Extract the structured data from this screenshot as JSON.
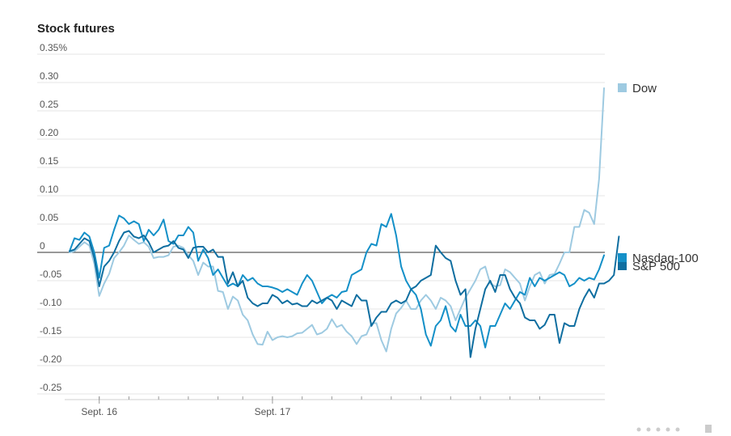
{
  "chart_data": {
    "type": "line",
    "title": "Stock futures",
    "xlabel": "",
    "ylabel": "",
    "ylim": [
      -0.25,
      0.35
    ],
    "y_ticks": [
      {
        "value": 0.35,
        "label": "0.35%"
      },
      {
        "value": 0.3,
        "label": "0.30"
      },
      {
        "value": 0.25,
        "label": "0.25"
      },
      {
        "value": 0.2,
        "label": "0.20"
      },
      {
        "value": 0.15,
        "label": "0.15"
      },
      {
        "value": 0.1,
        "label": "0.10"
      },
      {
        "value": 0.05,
        "label": "0.05"
      },
      {
        "value": 0,
        "label": "0"
      },
      {
        "value": -0.05,
        "label": "-0.05"
      },
      {
        "value": -0.1,
        "label": "-0.10"
      },
      {
        "value": -0.15,
        "label": "-0.15"
      },
      {
        "value": -0.2,
        "label": "-0.20"
      },
      {
        "value": -0.25,
        "label": "-0.25"
      }
    ],
    "x_labels": [
      {
        "index": 6,
        "label": "Sept. 16"
      },
      {
        "index": 41,
        "label": "Sept. 17"
      }
    ],
    "x_minor_ticks": [
      6,
      12,
      18,
      24,
      30,
      35,
      41,
      47,
      53,
      59,
      65,
      71,
      77,
      83,
      89,
      95
    ],
    "grid": true,
    "legend_position": "right-inline",
    "series": [
      {
        "name": "Dow",
        "color": "#9ecae1",
        "values": [
          0.0,
          0.002,
          0.01,
          0.018,
          0.012,
          -0.02,
          -0.077,
          -0.055,
          -0.038,
          -0.01,
          0.0,
          0.012,
          0.03,
          0.022,
          0.015,
          0.018,
          0.01,
          -0.01,
          -0.008,
          -0.008,
          -0.005,
          0.01,
          0.012,
          0.008,
          -0.005,
          -0.015,
          -0.04,
          -0.018,
          -0.025,
          -0.025,
          -0.068,
          -0.07,
          -0.1,
          -0.078,
          -0.085,
          -0.11,
          -0.12,
          -0.145,
          -0.162,
          -0.163,
          -0.14,
          -0.155,
          -0.15,
          -0.148,
          -0.15,
          -0.148,
          -0.143,
          -0.142,
          -0.135,
          -0.128,
          -0.145,
          -0.142,
          -0.135,
          -0.118,
          -0.132,
          -0.128,
          -0.14,
          -0.148,
          -0.162,
          -0.148,
          -0.145,
          -0.125,
          -0.125,
          -0.155,
          -0.175,
          -0.135,
          -0.108,
          -0.098,
          -0.085,
          -0.1,
          -0.1,
          -0.085,
          -0.075,
          -0.085,
          -0.1,
          -0.08,
          -0.085,
          -0.095,
          -0.12,
          -0.1,
          -0.08,
          -0.065,
          -0.05,
          -0.03,
          -0.025,
          -0.055,
          -0.06,
          -0.058,
          -0.03,
          -0.035,
          -0.045,
          -0.055,
          -0.085,
          -0.06,
          -0.04,
          -0.035,
          -0.055,
          -0.04,
          -0.038,
          -0.02,
          0.0,
          0.0,
          0.045,
          0.045,
          0.075,
          0.07,
          0.05,
          0.13,
          0.29
        ]
      },
      {
        "name": "S&P 500",
        "color": "#0f6ea0",
        "values": [
          0.002,
          0.005,
          0.015,
          0.025,
          0.02,
          -0.01,
          -0.06,
          -0.025,
          -0.015,
          0.0,
          0.02,
          0.035,
          0.038,
          0.028,
          0.025,
          0.03,
          0.018,
          0.0,
          0.005,
          0.01,
          0.012,
          0.02,
          0.008,
          0.005,
          -0.01,
          0.008,
          0.01,
          0.01,
          0.0,
          0.005,
          -0.008,
          -0.008,
          -0.055,
          -0.035,
          -0.06,
          -0.05,
          -0.08,
          -0.09,
          -0.095,
          -0.09,
          -0.09,
          -0.075,
          -0.08,
          -0.09,
          -0.085,
          -0.092,
          -0.09,
          -0.095,
          -0.095,
          -0.085,
          -0.09,
          -0.085,
          -0.08,
          -0.085,
          -0.1,
          -0.085,
          -0.09,
          -0.095,
          -0.075,
          -0.085,
          -0.085,
          -0.13,
          -0.115,
          -0.105,
          -0.105,
          -0.09,
          -0.085,
          -0.09,
          -0.085,
          -0.065,
          -0.06,
          -0.05,
          -0.045,
          -0.04,
          0.012,
          0.0,
          -0.01,
          -0.015,
          -0.05,
          -0.075,
          -0.065,
          -0.185,
          -0.135,
          -0.1,
          -0.065,
          -0.05,
          -0.07,
          -0.04,
          -0.04,
          -0.065,
          -0.08,
          -0.09,
          -0.115,
          -0.12,
          -0.12,
          -0.135,
          -0.128,
          -0.11,
          -0.11,
          -0.16,
          -0.125,
          -0.13,
          -0.13,
          -0.1,
          -0.08,
          -0.065,
          -0.08,
          -0.055,
          -0.055,
          -0.05,
          -0.04,
          0.028
        ]
      },
      {
        "name": "Nasdaq-100",
        "color": "#1490c8",
        "values": [
          0.002,
          0.025,
          0.022,
          0.035,
          0.028,
          0.0,
          -0.045,
          0.008,
          0.012,
          0.04,
          0.065,
          0.06,
          0.05,
          0.055,
          0.05,
          0.02,
          0.04,
          0.03,
          0.04,
          0.058,
          0.02,
          0.015,
          0.03,
          0.03,
          0.045,
          0.035,
          -0.015,
          0.005,
          -0.01,
          -0.04,
          -0.03,
          -0.045,
          -0.06,
          -0.055,
          -0.06,
          -0.04,
          -0.05,
          -0.045,
          -0.055,
          -0.06,
          -0.06,
          -0.062,
          -0.065,
          -0.07,
          -0.065,
          -0.07,
          -0.075,
          -0.055,
          -0.04,
          -0.05,
          -0.07,
          -0.09,
          -0.08,
          -0.075,
          -0.08,
          -0.07,
          -0.068,
          -0.04,
          -0.035,
          -0.03,
          0.0,
          0.015,
          0.012,
          0.05,
          0.045,
          0.068,
          0.03,
          -0.025,
          -0.05,
          -0.065,
          -0.075,
          -0.1,
          -0.145,
          -0.165,
          -0.13,
          -0.12,
          -0.095,
          -0.13,
          -0.14,
          -0.11,
          -0.13,
          -0.13,
          -0.12,
          -0.13,
          -0.168,
          -0.13,
          -0.13,
          -0.11,
          -0.09,
          -0.1,
          -0.085,
          -0.07,
          -0.075,
          -0.045,
          -0.06,
          -0.045,
          -0.05,
          -0.045,
          -0.04,
          -0.035,
          -0.04,
          -0.06,
          -0.055,
          -0.045,
          -0.05,
          -0.045,
          -0.048,
          -0.03,
          -0.005
        ]
      }
    ]
  }
}
